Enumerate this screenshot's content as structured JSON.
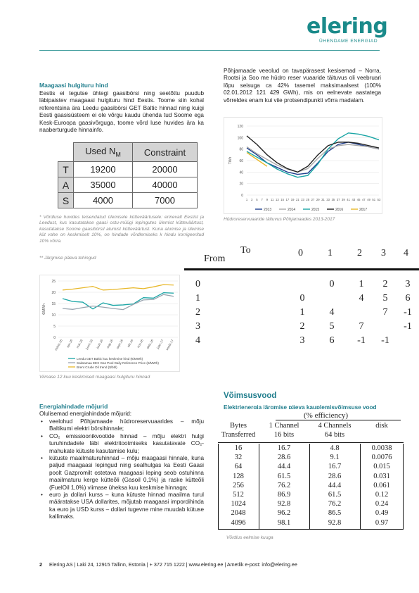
{
  "header": {
    "logo_text": "elering",
    "logo_tagline": "ÜHENDAME ENERGIAD"
  },
  "left": {
    "section1_title": "Maagaasi hulgituru hind",
    "section1_text": "Eestis ei tegutse ühtegi gaasibörsi ning seetõttu puudub läbipaistev maagaasi hulgituru hind Eestis. Toome siin kohal referentsina ära Leedu gaasibörsi GET Baltic hinnad ning kuigi Eesti gaasisüsteem ei ole võrgu kaudu ühenda tud Soome ega Kesk-Euroopa gaasivõrguga, toome võrd luse huvides ära ka naaberturgude hinnainfo.",
    "used_table": {
      "headers": [
        "",
        "Used NM",
        "Constraint"
      ],
      "header_main": "Used N",
      "header_sub": "M",
      "rows": [
        {
          "label": "T",
          "used": "19200",
          "constraint": "20000"
        },
        {
          "label": "A",
          "used": "35000",
          "constraint": "40000"
        },
        {
          "label": "S",
          "used": "4000",
          "constraint": "7000"
        }
      ]
    },
    "footnote1": "* Võrdluse huvides teisendatud ülemisele kütteväärtusele: erinevalt Eestist ja Leedust, kus kasutatakse gaasi ostu-müügi lepingutes ülemist kütteväärtust, kasutatakse Soome gaasibörsil alumist kütteväärtust. Kuna alumise ja ülemise küt vahe on keskmiselt 10%, on hindade võrdlemiseks k hindu korrigeeritud 10% võrra.",
    "footnote2": "** Järgmise päeva tehingud",
    "section2_title": "Energiahindade mõjurid",
    "section2_intro": "Olulisemad energiahindade mõjurid:",
    "bullets": [
      "veelohud Põhjamaade hüdroreservuaarides – mõju Baltikumi elektri börsihinnale;",
      "CO₂ emissioonikvootide hinnad – mõju elektri hulgi turuhindadele läbi elektritootmiseks kasutatavate CO₂-mahukate kütuste kasutamise kulu;",
      "kütuste maailmaturuhinnad – mõju maagaasi hinnale, kuna paljud maagaasi lepingud ning sealhulgas ka Eesti Gaasi poolt Gazpromilt ostetava maagaasi leping seob ostuhinna maailmaturu kerge kütteõli (Gasoil 0,1%) ja raske kütteõli (FuelOil 1,0%) viimase üheksa kuu keskmise hinnaga;",
      "euro ja dollari kurss – kuna kütuste hinnad maailma turul määratakse USA dollarites, mõjutab maagaasi impordihinda ka euro ja USD kurss – dollari tugevne mine muudab kütuse kallimaks."
    ]
  },
  "right": {
    "intro_text": "Põhjamaade veeolud on tavapärasest kesisemad – Norra, Rootsi ja Soo me hüdro reser vuaaride täituvus oli veebruari lõpu seisuga ca 42% tasemel maksimaalsest (100% 02.01.2012 121 429 GWh), mis on eelnevate aastatega võrreldes enam kui viie protsendipunkti võrra madalam.",
    "hydro_caption": "Hüdroreservuaaride täituvus Põhjamaades 2013-2017",
    "section_title": "Võimsusvood",
    "section_subtitle": "Elektrienergia järgmise päeva kauplemisvõimsuse vood",
    "efficiency_caption": "Võrdlus eelmise kuuga"
  },
  "from_to_table": {
    "to_label": "To",
    "from_label": "From",
    "columns": [
      "0",
      "1",
      "2",
      "3",
      "4"
    ],
    "rows": [
      {
        "from": "0",
        "cells": [
          "",
          "0",
          "1",
          "2",
          "3"
        ]
      },
      {
        "from": "1",
        "cells": [
          "0",
          "",
          "4",
          "5",
          "6"
        ]
      },
      {
        "from": "2",
        "cells": [
          "1",
          "4",
          "",
          "7",
          "-1"
        ]
      },
      {
        "from": "3",
        "cells": [
          "2",
          "5",
          "7",
          "",
          "-1"
        ]
      },
      {
        "from": "4",
        "cells": [
          "3",
          "6",
          "-1",
          "-1",
          ""
        ]
      }
    ]
  },
  "efficiency_table": {
    "title": "(% efficiency)",
    "headers": [
      "Bytes",
      "1 Channel",
      "4 Channels",
      "disk"
    ],
    "subheaders": [
      "Transferred",
      "16 bits",
      "64 bits",
      ""
    ],
    "rows": [
      [
        "16",
        "16.7",
        "4.8",
        "0.0038"
      ],
      [
        "32",
        "28.6",
        "9.1",
        "0.0076"
      ],
      [
        "64",
        "44.4",
        "16.7",
        "0.015"
      ],
      [
        "128",
        "61.5",
        "28.6",
        "0.031"
      ],
      [
        "256",
        "76.2",
        "44.4",
        "0.061"
      ],
      [
        "512",
        "86.9",
        "61.5",
        "0.12"
      ],
      [
        "1024",
        "92.8",
        "76.2",
        "0.24"
      ],
      [
        "2048",
        "96.2",
        "86.5",
        "0.49"
      ],
      [
        "4096",
        "98.1",
        "92.8",
        "0.97"
      ]
    ]
  },
  "price_chart_caption": "Viimase 12 kuu keskmised maagaasi hulgituru hinnad",
  "footer": {
    "page_number": "2",
    "text": "Elering AS | Laki 24, 12915 Tallinn, Estonia | + 372 715 1222 | www.elering.ee | Ametlik e-post: info@elering.ee"
  },
  "chart_data": [
    {
      "type": "line",
      "ylabel": "TWh",
      "ylim": [
        0,
        120
      ],
      "yticks": [
        0,
        20,
        40,
        60,
        80,
        100,
        120
      ],
      "xtick_labels": [
        "1",
        "3",
        "5",
        "7",
        "9",
        "11",
        "13",
        "15",
        "17",
        "19",
        "21",
        "23",
        "25",
        "27",
        "29",
        "31",
        "33",
        "35",
        "37",
        "39",
        "41",
        "43",
        "45",
        "47",
        "49",
        "51",
        "53"
      ],
      "xlim": [
        1,
        53
      ],
      "legend_position": "bottom",
      "series": [
        {
          "name": "2013",
          "color": "#1f3f8f",
          "x": [
            1,
            5,
            9,
            13,
            17,
            21,
            25,
            29,
            33,
            37,
            41,
            45,
            49,
            53
          ],
          "y": [
            82,
            70,
            56,
            48,
            40,
            36,
            38,
            56,
            76,
            88,
            92,
            88,
            84,
            80
          ]
        },
        {
          "name": "2014",
          "color": "#aaaaaa",
          "x": [
            1,
            5,
            9,
            13,
            17,
            21,
            25,
            29,
            33,
            37,
            41,
            45,
            49,
            53
          ],
          "y": [
            84,
            72,
            62,
            52,
            45,
            40,
            46,
            64,
            80,
            86,
            88,
            86,
            84,
            80
          ]
        },
        {
          "name": "2015",
          "color": "#1aa5a5",
          "x": [
            1,
            5,
            9,
            13,
            17,
            21,
            25,
            29,
            33,
            37,
            41,
            45,
            49,
            53
          ],
          "y": [
            76,
            66,
            56,
            45,
            37,
            31,
            34,
            54,
            80,
            98,
            108,
            106,
            102,
            96
          ]
        },
        {
          "name": "2016",
          "color": "#222222",
          "x": [
            1,
            5,
            9,
            13,
            17,
            21,
            25,
            29,
            33,
            37,
            41,
            45,
            49,
            53
          ],
          "y": [
            103,
            88,
            70,
            56,
            46,
            40,
            50,
            70,
            86,
            92,
            92,
            90,
            86,
            82
          ]
        },
        {
          "name": "2017",
          "color": "#e8b82a",
          "x": [
            1,
            5,
            9
          ],
          "y": [
            74,
            62,
            50
          ]
        }
      ]
    },
    {
      "type": "line",
      "ylabel": "€/MWh",
      "ylim": [
        0,
        25
      ],
      "yticks": [
        0,
        5,
        10,
        15,
        20,
        25
      ],
      "categories": [
        "märts.16",
        "apr.16",
        "mai.16",
        "juuni.16",
        "juuli.16",
        "aug.16",
        "sept.16",
        "okt.16",
        "nov.16",
        "dets.16",
        "jaan.17",
        "veebr.17"
      ],
      "legend_position": "bottom",
      "series": [
        {
          "name": "Leedu GET Baltic kuu keskmine hind (€/MWh)",
          "color": "#1aa5a5",
          "values": [
            17.2,
            15.9,
            15.6,
            12.6,
            15.3,
            14.2,
            14.4,
            14.8,
            17.6,
            17.4,
            19.8,
            19.6
          ]
        },
        {
          "name": "Saksamaa EEX Gas Pool Daily Reference Price (€/MWh)",
          "color": "#9aa5b0",
          "values": [
            12.8,
            12.4,
            13.2,
            13.9,
            13.4,
            12.8,
            12.3,
            14.6,
            16.6,
            16.8,
            19.0,
            18.2
          ]
        },
        {
          "name": "Brent Crude Oil trend ($/bbl)",
          "color": "#e8b82a",
          "values": [
            21.0,
            21.4,
            22.0,
            22.6,
            21.0,
            21.2,
            21.6,
            22.0,
            21.6,
            22.4,
            23.4,
            23.2
          ]
        }
      ]
    }
  ]
}
